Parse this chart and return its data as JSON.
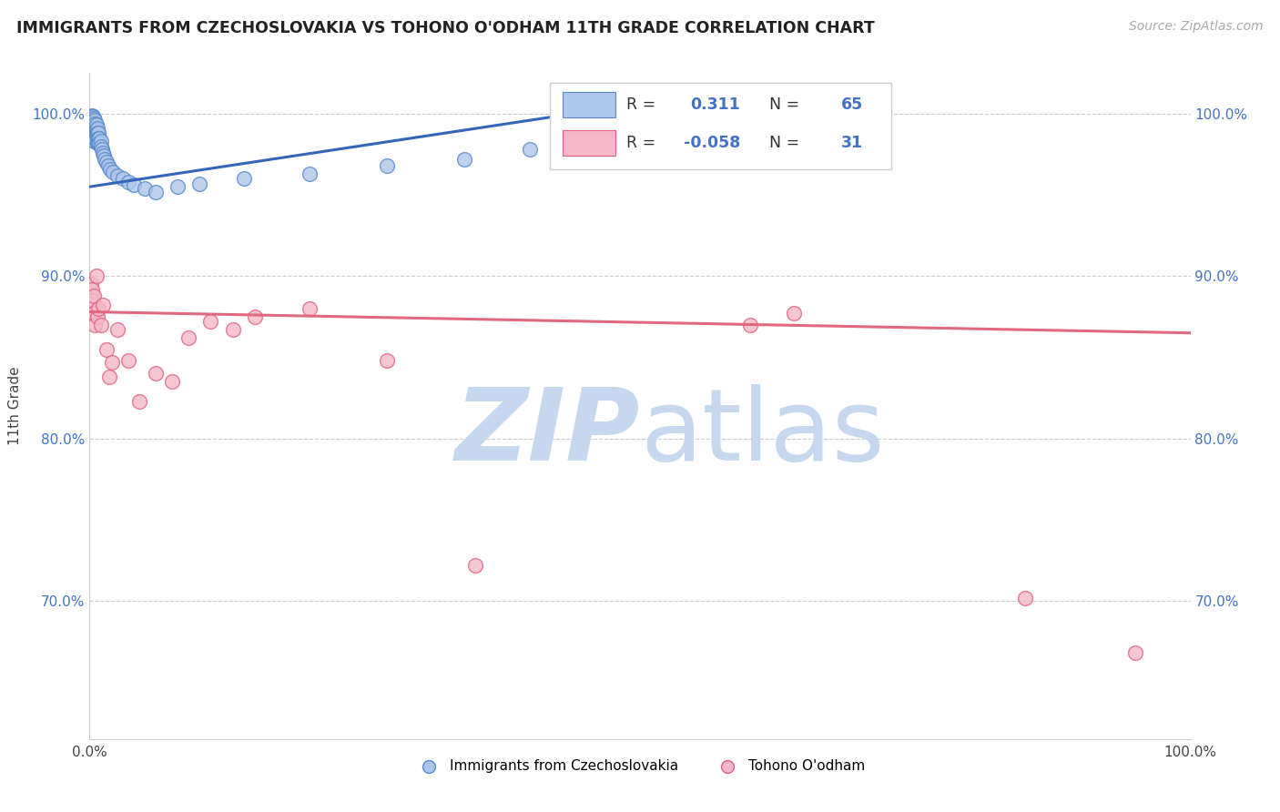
{
  "title": "IMMIGRANTS FROM CZECHOSLOVAKIA VS TOHONO O'ODHAM 11TH GRADE CORRELATION CHART",
  "source": "Source: ZipAtlas.com",
  "ylabel": "11th Grade",
  "xlim": [
    0.0,
    1.0
  ],
  "ylim": [
    0.615,
    1.025
  ],
  "ytick_labels": [
    "70.0%",
    "80.0%",
    "90.0%",
    "100.0%"
  ],
  "ytick_values": [
    0.7,
    0.8,
    0.9,
    1.0
  ],
  "xtick_labels": [
    "0.0%",
    "100.0%"
  ],
  "xtick_values": [
    0.0,
    1.0
  ],
  "blue_R": "0.311",
  "blue_N": "65",
  "pink_R": "-0.058",
  "pink_N": "31",
  "blue_color": "#aec6e8",
  "pink_color": "#f5b8c8",
  "blue_edge_color": "#5588cc",
  "pink_edge_color": "#e06080",
  "blue_line_color": "#3366bb",
  "pink_line_color": "#e06880",
  "watermark_zip_color": "#c5d8f0",
  "watermark_atlas_color": "#c5d8f0",
  "background_color": "#ffffff",
  "grid_color": "#cccccc",
  "blue_scatter_x": [
    0.001,
    0.001,
    0.001,
    0.002,
    0.002,
    0.002,
    0.002,
    0.002,
    0.003,
    0.003,
    0.003,
    0.003,
    0.003,
    0.003,
    0.003,
    0.003,
    0.004,
    0.004,
    0.004,
    0.004,
    0.004,
    0.004,
    0.004,
    0.004,
    0.005,
    0.005,
    0.005,
    0.005,
    0.005,
    0.005,
    0.006,
    0.006,
    0.006,
    0.007,
    0.007,
    0.007,
    0.007,
    0.008,
    0.008,
    0.008,
    0.009,
    0.009,
    0.01,
    0.01,
    0.011,
    0.012,
    0.013,
    0.014,
    0.015,
    0.017,
    0.019,
    0.021,
    0.025,
    0.03,
    0.035,
    0.04,
    0.05,
    0.06,
    0.08,
    0.1,
    0.14,
    0.2,
    0.27,
    0.34,
    0.4
  ],
  "blue_scatter_y": [
    0.998,
    0.996,
    0.994,
    0.999,
    0.997,
    0.996,
    0.994,
    0.992,
    0.998,
    0.996,
    0.994,
    0.992,
    0.99,
    0.988,
    0.986,
    0.984,
    0.997,
    0.995,
    0.993,
    0.991,
    0.989,
    0.987,
    0.985,
    0.983,
    0.996,
    0.994,
    0.991,
    0.989,
    0.987,
    0.985,
    0.993,
    0.99,
    0.987,
    0.991,
    0.988,
    0.985,
    0.982,
    0.988,
    0.985,
    0.982,
    0.985,
    0.982,
    0.983,
    0.98,
    0.978,
    0.976,
    0.974,
    0.972,
    0.97,
    0.968,
    0.966,
    0.964,
    0.962,
    0.96,
    0.958,
    0.956,
    0.954,
    0.952,
    0.955,
    0.957,
    0.96,
    0.963,
    0.968,
    0.972,
    0.978
  ],
  "pink_scatter_x": [
    0.001,
    0.001,
    0.002,
    0.003,
    0.004,
    0.004,
    0.005,
    0.006,
    0.007,
    0.008,
    0.01,
    0.012,
    0.015,
    0.018,
    0.02,
    0.025,
    0.035,
    0.045,
    0.06,
    0.075,
    0.09,
    0.11,
    0.13,
    0.15,
    0.2,
    0.27,
    0.35,
    0.6,
    0.64,
    0.85,
    0.95
  ],
  "pink_scatter_y": [
    0.895,
    0.883,
    0.892,
    0.885,
    0.877,
    0.888,
    0.87,
    0.9,
    0.875,
    0.88,
    0.87,
    0.882,
    0.855,
    0.838,
    0.847,
    0.867,
    0.848,
    0.823,
    0.84,
    0.835,
    0.862,
    0.872,
    0.867,
    0.875,
    0.88,
    0.848,
    0.722,
    0.87,
    0.877,
    0.702,
    0.668
  ],
  "blue_trend_x": [
    0.0,
    0.42
  ],
  "blue_trend_y": [
    0.955,
    0.998
  ],
  "pink_trend_x": [
    0.0,
    1.0
  ],
  "pink_trend_y": [
    0.878,
    0.865
  ]
}
